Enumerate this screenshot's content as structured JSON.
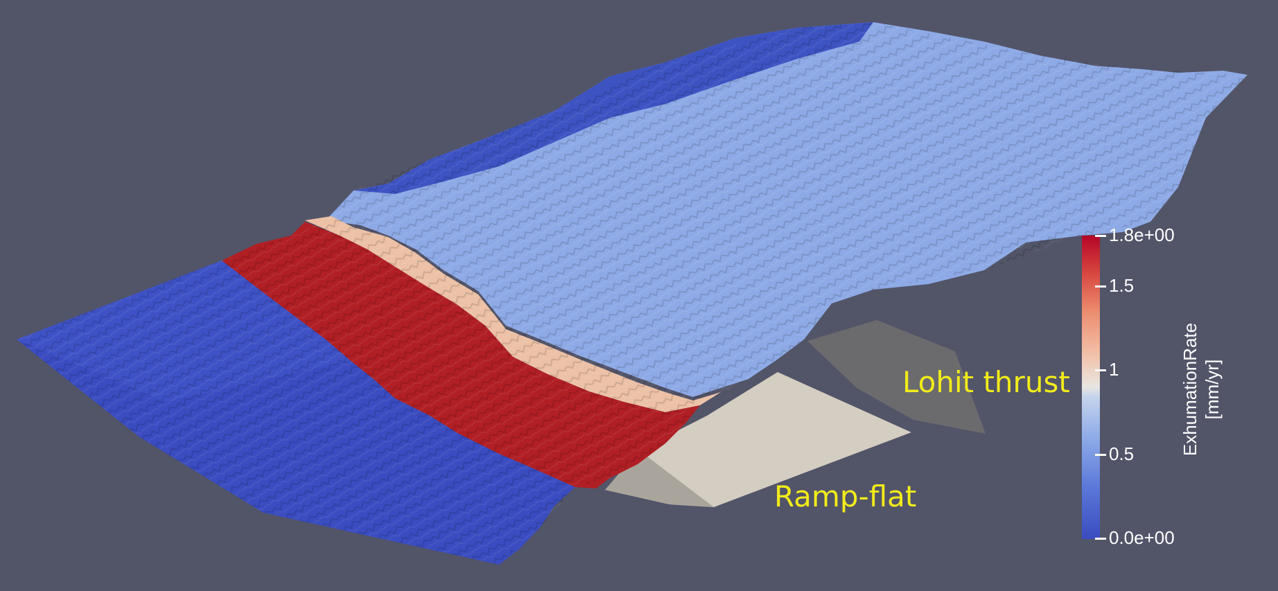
{
  "scene": {
    "background_color": "#525468",
    "surface_description_colors": {
      "low": "#3a4cc0",
      "mid": "#8daae8",
      "high": "#b40426",
      "fault_plane_ramp": "#d4cdc1",
      "fault_plane_lohit": "#6b6b6e"
    }
  },
  "annotations": {
    "lohit": "Lohit thrust",
    "ramp": "Ramp-flat",
    "text_color": "#f2ec1a"
  },
  "colorbar": {
    "title_line1": "ExhumationRate",
    "title_line2": "[mm/yr]",
    "range": [
      0.0,
      1.8
    ],
    "ticks": [
      {
        "value": 1.8,
        "label": "1.8e+00"
      },
      {
        "value": 1.5,
        "label": "1.5"
      },
      {
        "value": 1.0,
        "label": "1"
      },
      {
        "value": 0.5,
        "label": "0.5"
      },
      {
        "value": 0.0,
        "label": "0.0e+00"
      }
    ],
    "colormap": "Cool to Warm"
  }
}
